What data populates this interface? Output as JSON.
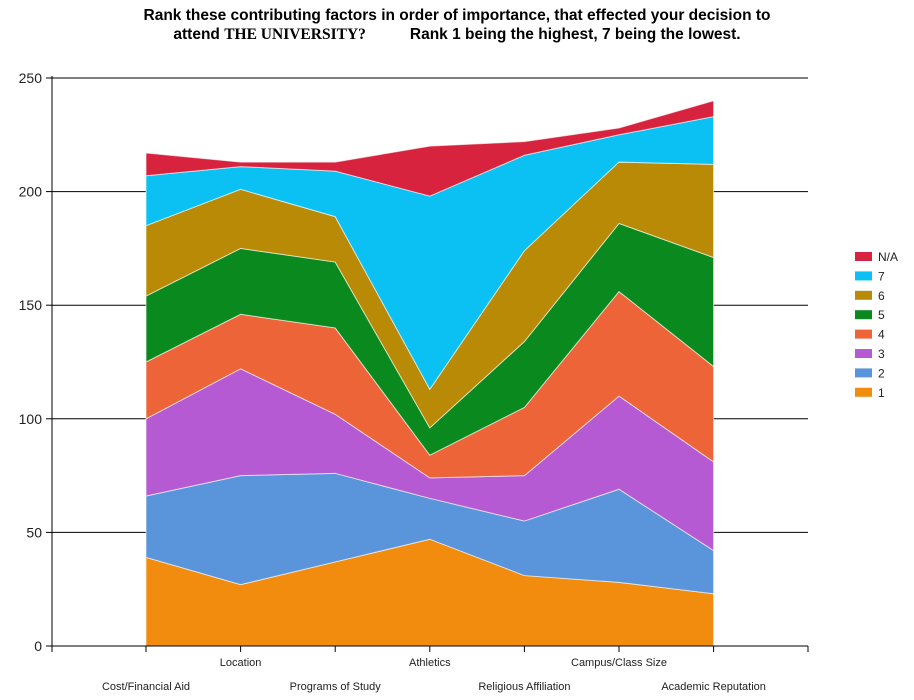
{
  "title": {
    "line1": "Rank these contributing factors in order of importance, that effected your decision to",
    "line2_prefix": "attend ",
    "line2_emph": "THE UNIVERSITY?",
    "line2_suffix": "Rank 1 being the highest, 7 being the lowest."
  },
  "chart_data": {
    "type": "area",
    "stacked": true,
    "title": "Rank these contributing factors in order of importance, that effected your decision to attend THE UNIVERSITY? Rank 1 being the highest, 7 being the lowest.",
    "xlabel": "",
    "ylabel": "",
    "ylim": [
      0,
      250
    ],
    "yticks": [
      0,
      50,
      100,
      150,
      200,
      250
    ],
    "grid": true,
    "legend_position": "right",
    "categories": [
      "Cost/Financial Aid",
      "Location",
      "Programs of Study",
      "Athletics",
      "Religious Affiliation",
      "Campus/Class Size",
      "Academic Reputation"
    ],
    "series": [
      {
        "name": "1",
        "color": "#f28c0f",
        "values": [
          39,
          27,
          37,
          47,
          31,
          28,
          23
        ]
      },
      {
        "name": "2",
        "color": "#5a95dc",
        "values": [
          27,
          48,
          39,
          18,
          24,
          41,
          19
        ]
      },
      {
        "name": "3",
        "color": "#b65ad4",
        "values": [
          34,
          47,
          26,
          9,
          20,
          41,
          39
        ]
      },
      {
        "name": "4",
        "color": "#ee6439",
        "values": [
          25,
          24,
          38,
          10,
          30,
          46,
          42
        ]
      },
      {
        "name": "5",
        "color": "#0a8a1e",
        "values": [
          29,
          29,
          29,
          12,
          29,
          30,
          48
        ]
      },
      {
        "name": "6",
        "color": "#b98a06",
        "values": [
          31,
          26,
          20,
          17,
          40,
          27,
          41
        ]
      },
      {
        "name": "7",
        "color": "#0bc0f3",
        "values": [
          22,
          10,
          20,
          85,
          42,
          12,
          21
        ]
      },
      {
        "name": "N/A",
        "color": "#d8233e",
        "values": [
          10,
          2,
          4,
          22,
          6,
          3,
          7
        ]
      }
    ]
  }
}
